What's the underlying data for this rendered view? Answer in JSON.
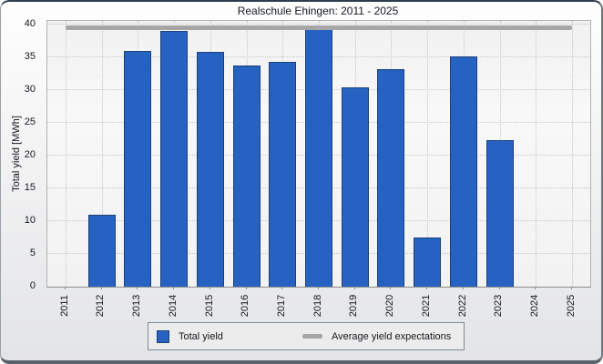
{
  "chart_data": {
    "type": "bar",
    "title": "Realschule Ehingen: 2011 - 2025",
    "ylabel": "Total yield [MWh]",
    "xlabel": "",
    "categories": [
      "2011",
      "2012",
      "2013",
      "2014",
      "2015",
      "2016",
      "2017",
      "2018",
      "2019",
      "2020",
      "2021",
      "2022",
      "2023",
      "2024",
      "2025"
    ],
    "values": [
      0,
      11,
      36,
      39,
      35.8,
      33.7,
      34.3,
      39.9,
      30.4,
      33.2,
      7.5,
      35.2,
      22.3,
      0,
      0
    ],
    "average_yield_expectation": 39.5,
    "ylim": [
      0,
      40
    ],
    "yticks": [
      0,
      5,
      10,
      15,
      20,
      25,
      30,
      35,
      40
    ],
    "grid": "dotted",
    "legend_position": "bottom",
    "legend": [
      {
        "label": "Total yield",
        "type": "bar",
        "color": "#2562c2"
      },
      {
        "label": "Average yield expectations",
        "type": "line",
        "color": "#a6a6a6"
      }
    ]
  },
  "colors": {
    "bar_fill": "#2562c2",
    "bar_border": "#1c4178",
    "average_line": "#a6a6a6",
    "plot_background": "#f5f5f6",
    "gridline": "#c6c6c6",
    "text": "#14181f"
  }
}
